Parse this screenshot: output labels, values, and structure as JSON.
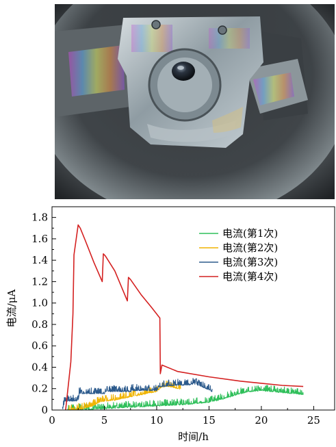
{
  "photo": {
    "description_icon": "camera-photo",
    "colors": {
      "dark": "#1b1d1f",
      "metal": "#9aa6ad",
      "highlight": "#c9d3d8"
    }
  },
  "chart_data": {
    "type": "line",
    "title": "",
    "xlabel": "时间/h",
    "ylabel": "电流/μA",
    "xlim": [
      0,
      27
    ],
    "ylim": [
      0,
      1.9
    ],
    "xticks": [
      0,
      5,
      10,
      15,
      20,
      25
    ],
    "yticks": [
      0,
      0.2,
      0.4,
      0.6,
      0.8,
      1.0,
      1.2,
      1.4,
      1.6,
      1.8
    ],
    "xtick_labels": [
      "0",
      "5",
      "10",
      "15",
      "20",
      "25"
    ],
    "ytick_labels": [
      "0",
      "0.2",
      "0.4",
      "0.6",
      "0.8",
      "1.0",
      "1.2",
      "1.4",
      "1.6",
      "1.8"
    ],
    "legend_position": "top-right",
    "grid": false,
    "series": [
      {
        "name": "电流(第1次)",
        "color": "#2fbf5a",
        "noisy": true,
        "x": [
          1.5,
          3,
          5,
          7,
          9,
          11,
          13,
          15,
          16,
          17,
          18,
          19,
          20,
          21,
          22,
          23,
          24
        ],
        "y": [
          0.0,
          0.01,
          0.02,
          0.03,
          0.04,
          0.05,
          0.06,
          0.08,
          0.1,
          0.13,
          0.16,
          0.18,
          0.19,
          0.18,
          0.17,
          0.16,
          0.15
        ]
      },
      {
        "name": "电流(第2次)",
        "color": "#f0b400",
        "noisy": true,
        "x": [
          1.5,
          3,
          4,
          4.5,
          5,
          6,
          7,
          8,
          9,
          10,
          10.5,
          11,
          11.5,
          12,
          12.3
        ],
        "y": [
          0.0,
          0.02,
          0.05,
          0.08,
          0.09,
          0.1,
          0.12,
          0.14,
          0.16,
          0.18,
          0.22,
          0.23,
          0.22,
          0.21,
          0.2
        ]
      },
      {
        "name": "电流(第3次)",
        "color": "#2c5a8c",
        "noisy": true,
        "x": [
          1.0,
          1.2,
          2.5,
          2.6,
          5,
          5.1,
          7.5,
          7.6,
          10,
          10.2,
          11,
          12,
          13,
          13.5,
          14,
          15.3
        ],
        "y": [
          0.0,
          0.09,
          0.09,
          0.16,
          0.16,
          0.18,
          0.18,
          0.19,
          0.19,
          0.22,
          0.23,
          0.24,
          0.24,
          0.25,
          0.24,
          0.18
        ]
      },
      {
        "name": "电流(第4次)",
        "color": "#d42020",
        "noisy": false,
        "x": [
          1.3,
          1.8,
          2.0,
          2.1,
          2.5,
          2.7,
          3.2,
          4.0,
          4.8,
          4.9,
          5.1,
          6.0,
          7.2,
          7.3,
          7.5,
          8.5,
          9.5,
          10.3,
          10.35,
          10.5,
          12,
          15,
          18,
          20,
          22,
          24
        ],
        "y": [
          0.0,
          0.45,
          0.9,
          1.45,
          1.73,
          1.7,
          1.58,
          1.38,
          1.2,
          1.46,
          1.44,
          1.3,
          1.02,
          1.24,
          1.22,
          1.08,
          0.96,
          0.86,
          0.34,
          0.42,
          0.36,
          0.31,
          0.27,
          0.25,
          0.23,
          0.22
        ]
      }
    ]
  }
}
